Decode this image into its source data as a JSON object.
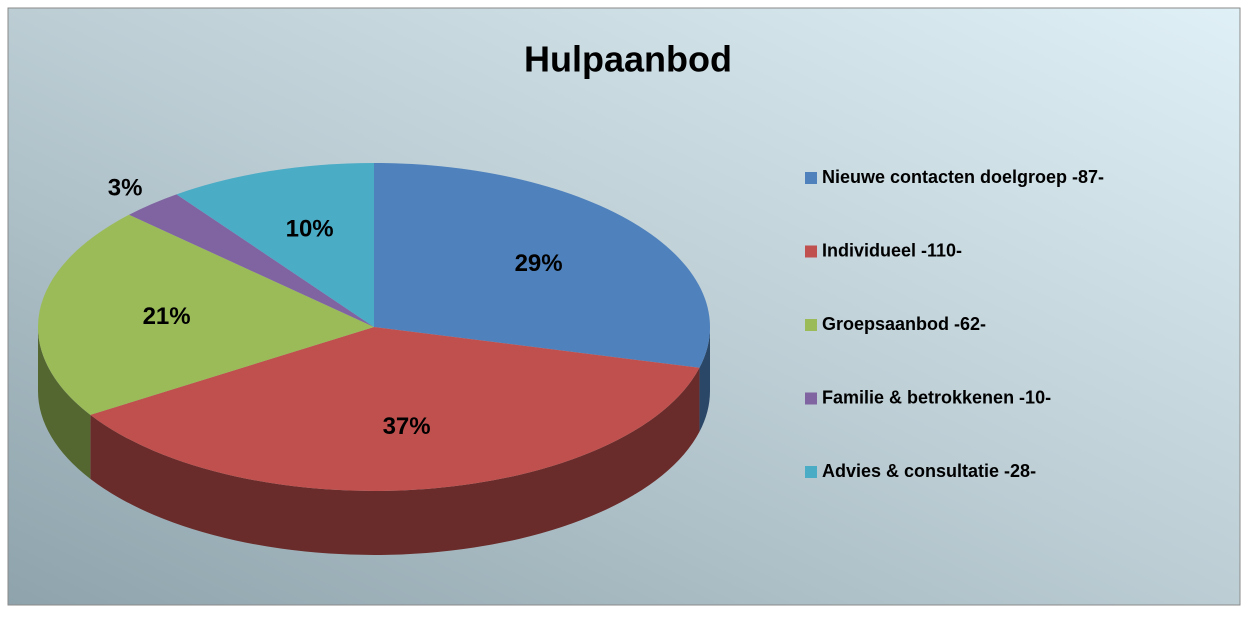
{
  "chart_data": {
    "type": "pie",
    "title": "Hulpaanbod",
    "categories": [
      "Nieuwe contacten doelgroep -87-",
      "Individueel -110-",
      "Groepsaanbod -62-",
      "Familie & betrokkenen -10-",
      "Advies & consultatie -28-"
    ],
    "values": [
      29,
      37,
      21,
      3,
      10
    ],
    "value_labels": [
      "29%",
      "37%",
      "21%",
      "3%",
      "10%"
    ],
    "colors": [
      "#4f81bd",
      "#c0504d",
      "#9bbb59",
      "#8064a2",
      "#4bacc6"
    ],
    "legend": "right"
  }
}
